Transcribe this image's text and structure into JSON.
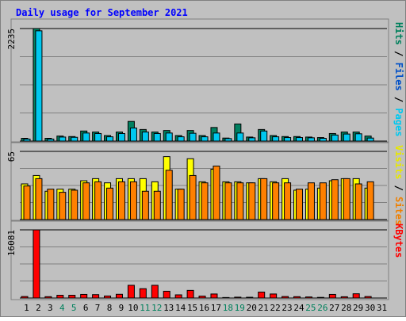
{
  "chart_data": {
    "type": "bar",
    "title": "Daily usage for September 2021",
    "categories": [
      "1",
      "2",
      "3",
      "4",
      "5",
      "6",
      "7",
      "8",
      "9",
      "10",
      "11",
      "12",
      "13",
      "14",
      "15",
      "16",
      "17",
      "18",
      "19",
      "20",
      "21",
      "22",
      "23",
      "24",
      "25",
      "26",
      "27",
      "28",
      "29",
      "30",
      "31"
    ],
    "weekend_days": [
      "4",
      "5",
      "11",
      "12",
      "18",
      "19",
      "25",
      "26"
    ],
    "panels": [
      {
        "id": "hits",
        "ymax_label": "2235",
        "ylim": [
          0,
          2235
        ],
        "legend": [
          {
            "text": "Pages",
            "color": "#00c8f0"
          },
          {
            "text": " / ",
            "color": "#000000"
          },
          {
            "text": "Files",
            "color": "#0050c8"
          },
          {
            "text": " / ",
            "color": "#000000"
          },
          {
            "text": "Hits",
            "color": "#00805c"
          }
        ],
        "series": [
          {
            "name": "Hits",
            "color": "#008060",
            "values": [
              55,
              2235,
              55,
              100,
              90,
              200,
              180,
              110,
              180,
              390,
              230,
              180,
              210,
              110,
              210,
              110,
              270,
              60,
              340,
              80,
              230,
              110,
              90,
              90,
              80,
              70,
              150,
              180,
              180,
              100,
              0
            ]
          },
          {
            "name": "Files",
            "color": "#00c8f0",
            "values": [
              40,
              2190,
              40,
              80,
              75,
              160,
              150,
              85,
              150,
              260,
              180,
              150,
              160,
              85,
              155,
              85,
              160,
              50,
              160,
              65,
              200,
              85,
              70,
              70,
              65,
              55,
              120,
              140,
              145,
              60,
              0
            ]
          }
        ]
      },
      {
        "id": "visits",
        "ymax_label": "65",
        "ylim": [
          0,
          65
        ],
        "legend": [
          {
            "text": "Sites",
            "color": "#f08000"
          },
          {
            "text": " / ",
            "color": "#000000"
          },
          {
            "text": "Visits",
            "color": "#e8e800"
          }
        ],
        "series": [
          {
            "name": "Visits",
            "color": "#ffff00",
            "values": [
              34,
              42,
              27,
              29,
              29,
              37,
              39,
              35,
              39,
              39,
              39,
              36,
              60,
              29,
              58,
              36,
              48,
              36,
              36,
              35,
              39,
              36,
              39,
              28,
              29,
              30,
              37,
              39,
              39,
              30,
              0
            ]
          },
          {
            "name": "Sites",
            "color": "#ff8000",
            "values": [
              32,
              39,
              29,
              26,
              28,
              35,
              36,
              30,
              36,
              36,
              27,
              27,
              47,
              29,
              42,
              35,
              51,
              35,
              35,
              35,
              39,
              35,
              35,
              29,
              35,
              35,
              38,
              39,
              34,
              36,
              0
            ]
          }
        ]
      },
      {
        "id": "kbytes",
        "ymax_label": "16081",
        "ylim": [
          0,
          16081
        ],
        "legend": [
          {
            "text": "KBytes",
            "color": "#ff0000"
          }
        ],
        "series": [
          {
            "name": "KBytes",
            "color": "#ff0000",
            "values": [
              350,
              16081,
              320,
              650,
              650,
              850,
              800,
              480,
              880,
              3000,
              2200,
              3000,
              1600,
              750,
              1800,
              450,
              950,
              120,
              200,
              180,
              1400,
              950,
              350,
              320,
              250,
              150,
              850,
              300,
              1000,
              350,
              0
            ]
          }
        ]
      }
    ]
  }
}
